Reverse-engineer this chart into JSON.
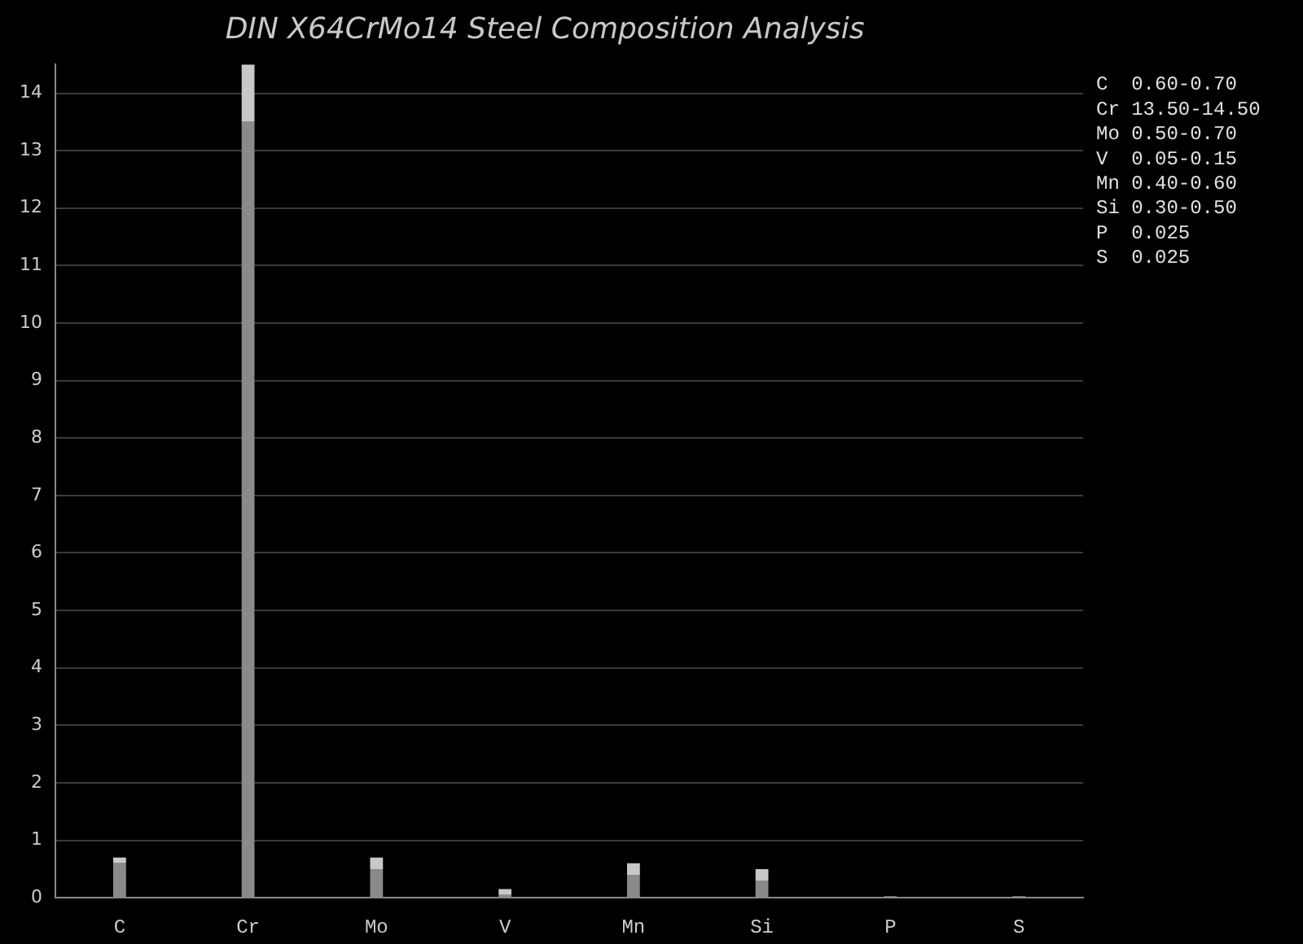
{
  "chart_data": {
    "type": "bar",
    "title": "DIN X64CrMo14 Steel Composition Analysis",
    "categories": [
      "C",
      "Cr",
      "Mo",
      "V",
      "Mn",
      "Si",
      "P",
      "S"
    ],
    "stacked": true,
    "series": [
      {
        "color": "#8a8a8a",
        "values": [
          0.6,
          13.5,
          0.5,
          0.05,
          0.4,
          0.3,
          0,
          0
        ]
      },
      {
        "color": "#c8c8c8",
        "values": [
          0.1,
          1.0,
          0.2,
          0.1,
          0.2,
          0.2,
          0.025,
          0.025
        ]
      }
    ],
    "ylim": [
      0,
      14.5
    ],
    "yticks": [
      0,
      1,
      2,
      3,
      4,
      5,
      6,
      7,
      8,
      9,
      10,
      11,
      12,
      13,
      14
    ],
    "grid": "y",
    "legend": false,
    "annotations": [
      "C  0.60-0.70",
      "Cr 13.50-14.50",
      "Mo 0.50-0.70",
      "V  0.05-0.15",
      "Mn 0.40-0.60",
      "Si 0.30-0.50",
      "P  0.025",
      "S  0.025"
    ]
  }
}
